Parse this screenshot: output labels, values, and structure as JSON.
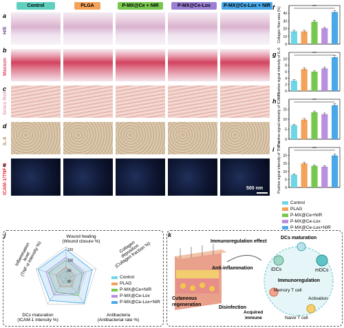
{
  "panels": {
    "a": "a",
    "b": "b",
    "c": "c",
    "d": "d",
    "e": "e",
    "f": "f",
    "g": "g",
    "h": "h",
    "i": "i",
    "j": "j",
    "k": "k"
  },
  "columns": [
    {
      "label": "Control",
      "bg": "#5fd0c0"
    },
    {
      "label": "PLGA",
      "bg": "#f4a259"
    },
    {
      "label": "P-MX@Ce + NIR",
      "bg": "#78c850"
    },
    {
      "label": "P-MX@Ce-Lox",
      "bg": "#9b7fd4"
    },
    {
      "label": "P-MX@Ce-Lox + NIR",
      "bg": "#4aa8e8"
    }
  ],
  "rows": [
    {
      "label": "H/E",
      "color": "#6a4c93"
    },
    {
      "label": "Masson",
      "color": "#e24a6c"
    },
    {
      "label": "Sirius Red",
      "color": "#e8a4b0"
    },
    {
      "label": "IL-6",
      "color": "#b39a6a"
    },
    {
      "label": "ICAM-1/TNF-α",
      "color": "#e63946"
    }
  ],
  "scale_label": "500 nm",
  "series_colors": [
    "#6fd6e6",
    "#f4a259",
    "#78c850",
    "#b98fe0",
    "#4aa8e8"
  ],
  "chart_data": [
    {
      "type": "bar",
      "ylabel": "Collagen fiber area (%)",
      "ylim": [
        0,
        50
      ],
      "yticks": [
        0,
        10,
        20,
        30,
        40
      ],
      "values": [
        16.5,
        16.5,
        29,
        20.5,
        41.5
      ],
      "errors": [
        1.5,
        1.5,
        2,
        1.2,
        1.8
      ],
      "significance": "***"
    },
    {
      "type": "bar",
      "ylabel": "Positive signal intensity of IL-6",
      "ylim": [
        0,
        12
      ],
      "yticks": [
        0,
        2,
        4,
        6,
        8,
        10
      ],
      "values": [
        3.2,
        6.8,
        6.0,
        7.0,
        10.5
      ],
      "errors": [
        0.3,
        0.4,
        0.3,
        0.4,
        0.5
      ],
      "significance": "***"
    },
    {
      "type": "bar",
      "ylabel": "Positive signal intensity of ICAM-1",
      "ylim": [
        0,
        20
      ],
      "yticks": [
        0,
        5,
        10,
        15
      ],
      "values": [
        7.0,
        9.8,
        13.5,
        12.5,
        17.0
      ],
      "errors": [
        0.5,
        0.6,
        0.6,
        0.6,
        0.8
      ],
      "significance": "***"
    },
    {
      "type": "bar",
      "ylabel": "Positive signal intensity of TNF-α",
      "ylim": [
        0,
        25
      ],
      "yticks": [
        0,
        5,
        10,
        15,
        20
      ],
      "values": [
        8.0,
        15.0,
        13.5,
        13.0,
        20.0
      ],
      "errors": [
        0.5,
        0.8,
        0.6,
        0.6,
        1.0
      ],
      "significance": "***"
    },
    {
      "type": "radar",
      "axes": [
        "Wound healing (Wound closure %)",
        "Collagen deposition (Collagen fraction %)",
        "Antibacteria (Antibacterial rate %)",
        "DCs maturation (ICAM-1 intensity %)",
        "Inflammation level (TNF-α intensity %)"
      ],
      "rticks": [
        60,
        80,
        100,
        120
      ],
      "series": [
        {
          "name": "Control",
          "values": [
            75,
            70,
            70,
            70,
            75
          ]
        },
        {
          "name": "PLAG",
          "values": [
            82,
            76,
            78,
            78,
            80
          ]
        },
        {
          "name": "P-MX@Ce+NIR",
          "values": [
            95,
            92,
            100,
            92,
            95
          ]
        },
        {
          "name": "P-MX@Ce-Lox",
          "values": [
            100,
            96,
            95,
            98,
            100
          ]
        },
        {
          "name": "P-MX@Ce-Lox+NIR",
          "values": [
            115,
            112,
            118,
            112,
            116
          ]
        }
      ]
    }
  ],
  "legend_items": [
    "Control",
    "PLAG",
    "P-MX@Ce+NIR",
    "P-MX@Ce-Lox",
    "P-MX@Ce-Lox+NIR"
  ],
  "radar_labels": {
    "top1": "Wound healing",
    "top2": "(Wound closure %)",
    "right1": "Collagen",
    "right2": "deposition",
    "right3": "(Collagen fraction %)",
    "br1": "Antibacteria",
    "br2": "(Antibacterial rate %)",
    "bl1": "DCs maturation",
    "bl2": "(ICAM-1 intensity %)",
    "left1": "Inflammation",
    "left2": "level",
    "left3": "(TNF-α intensity %)"
  },
  "radar_tick_labels": [
    "120",
    "100",
    "80",
    "60"
  ],
  "scheme": {
    "immunoregulation_effect": "Immunoregulation effect",
    "anti_inflammation": "Anti-inflammation",
    "cutaneous": "Cutaneous",
    "regeneration": "regeneration",
    "disinfection": "Disinfection",
    "acquired1": "Acquired",
    "acquired2": "immune",
    "dcs_maturation": "DCs maturation",
    "idcs": "iDCs",
    "mdcs": "mDCs",
    "immunoregulation": "Immunoregulation",
    "memory_t": "Memory T cell",
    "activation": "Activation",
    "naive_t": "Naive T cell"
  }
}
